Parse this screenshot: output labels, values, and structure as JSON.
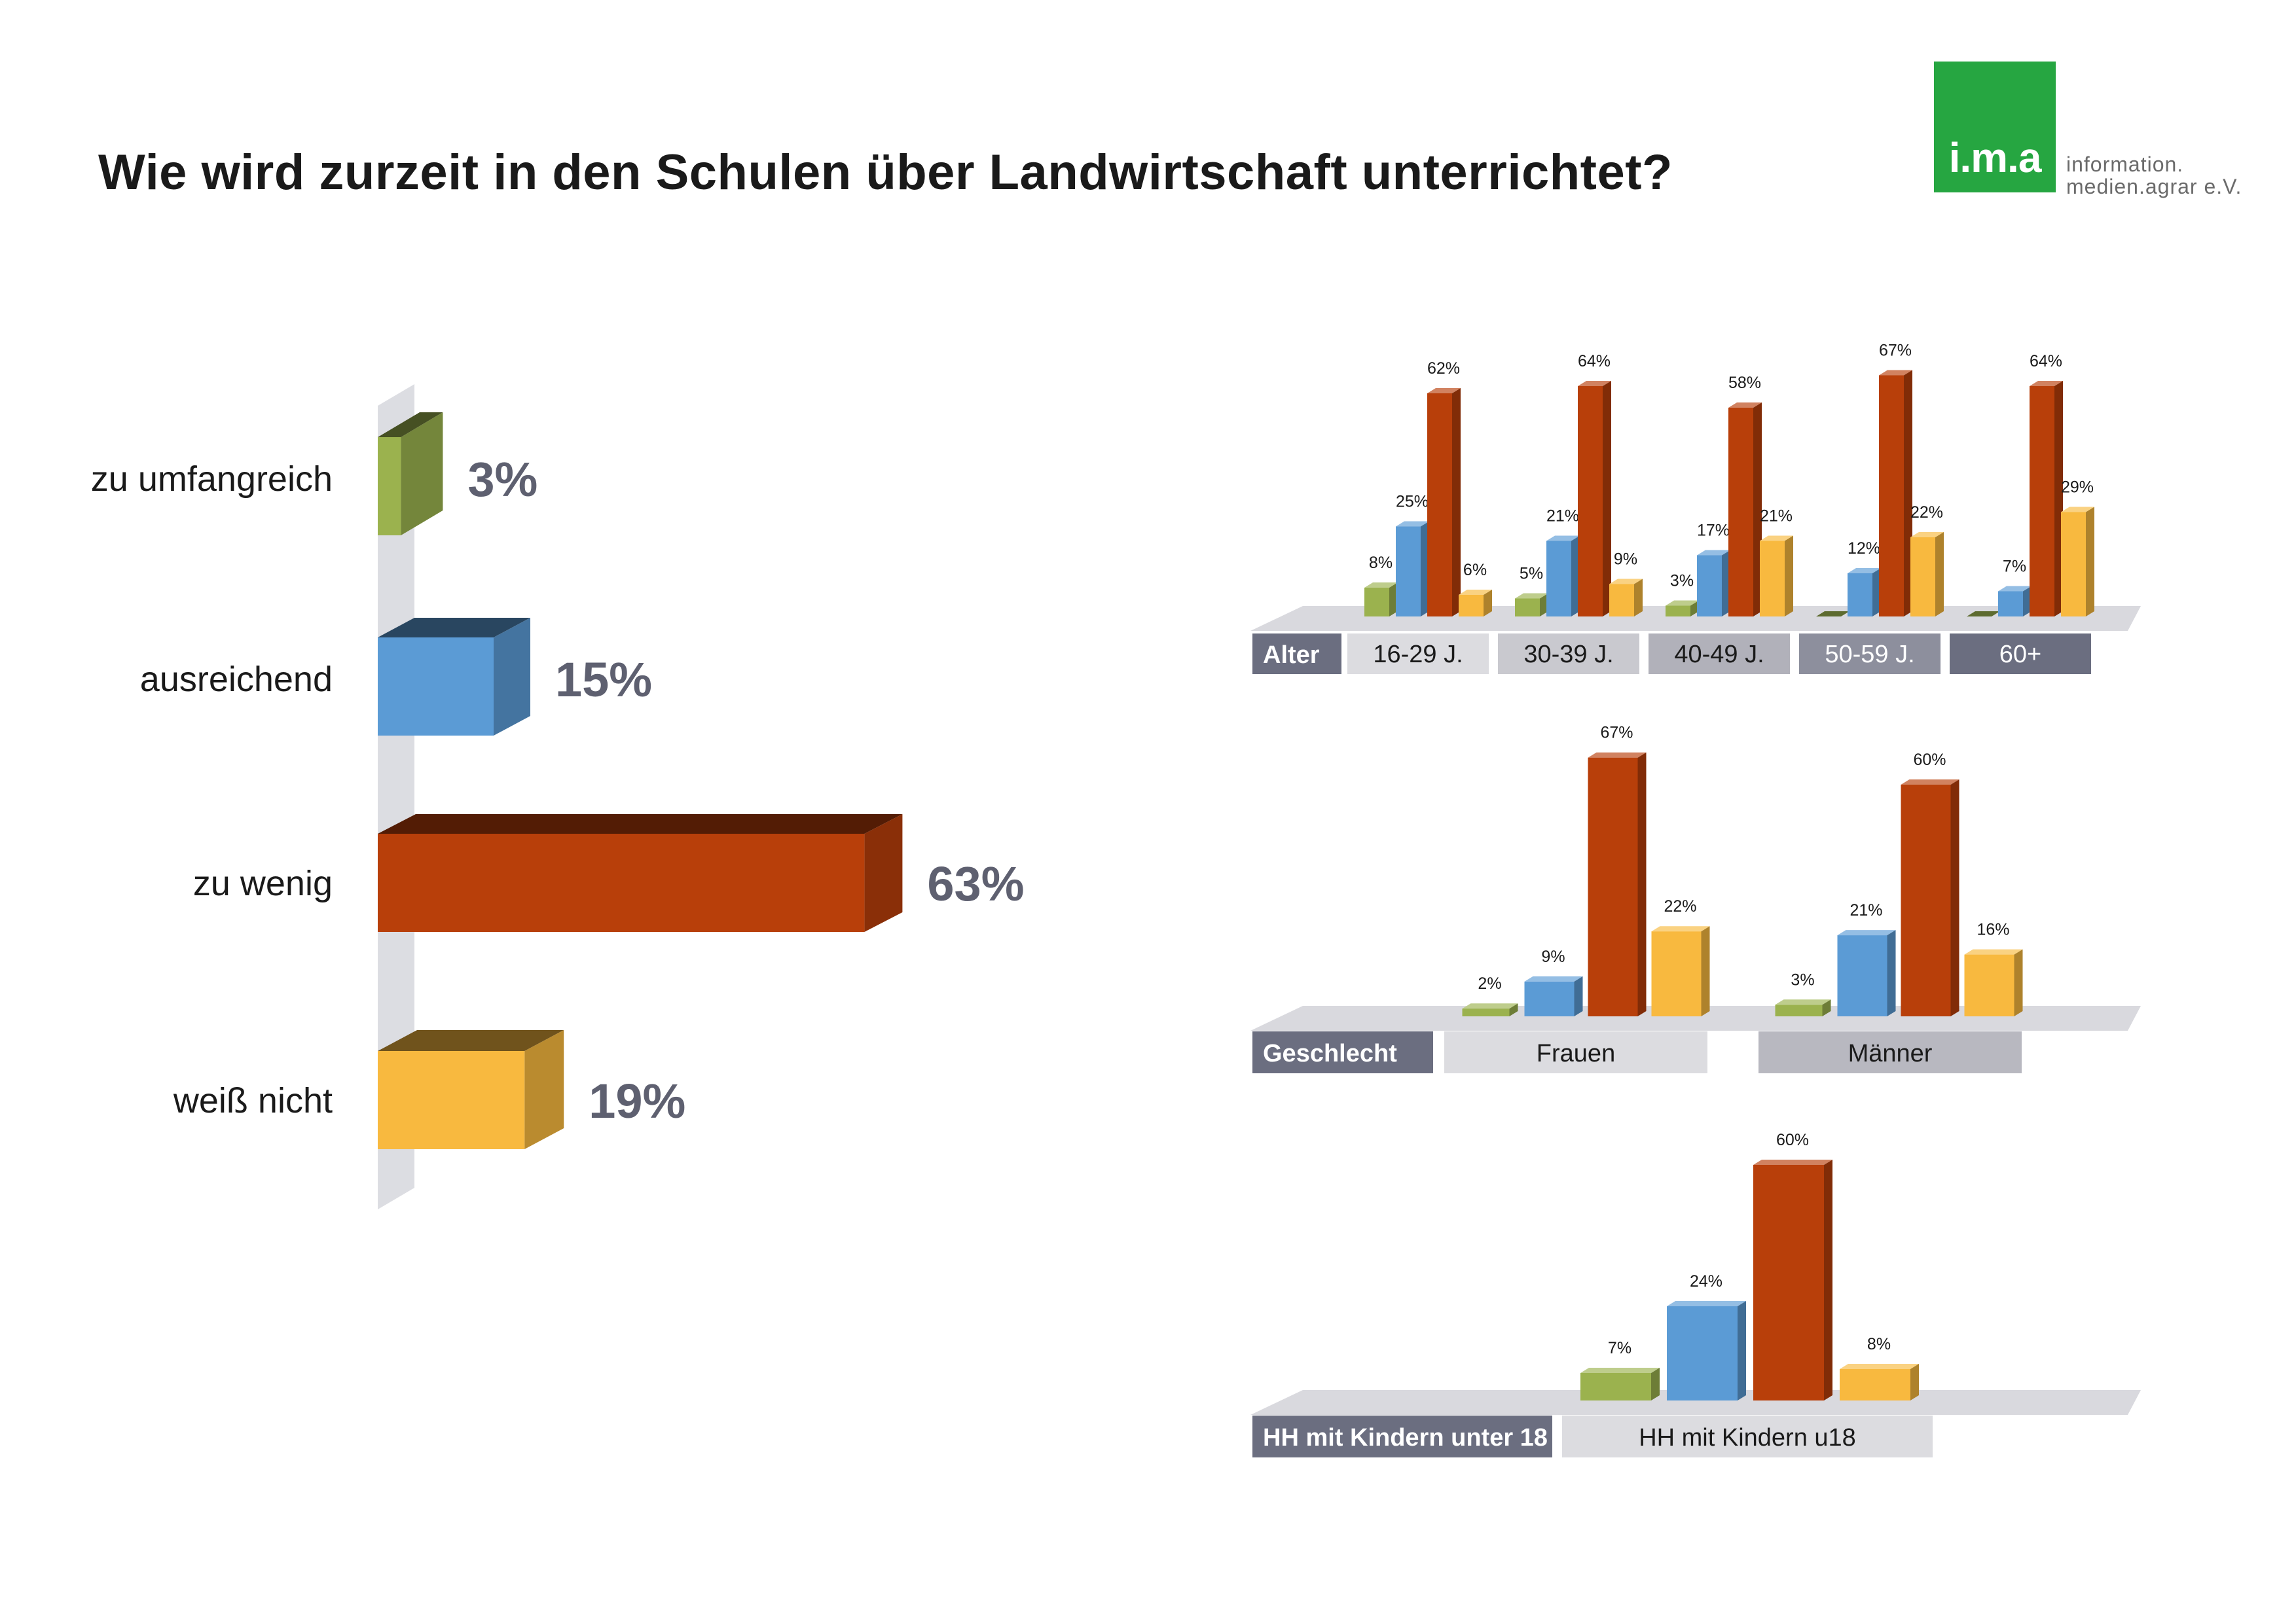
{
  "title": "Wie wird zurzeit in den Schulen über Landwirtschaft unterrichtet?",
  "logo": {
    "mark": "i.m.a",
    "line1": "information.",
    "line2": "medien.agrar e.V."
  },
  "colors": {
    "green": "#9bb24e",
    "blue": "#5b9bd5",
    "red": "#b83f0a",
    "yellow": "#f8b93f",
    "tag_dark": "#6b6e80",
    "tag_light": "#dcdce0"
  },
  "chart_data": [
    {
      "type": "bar",
      "orientation": "horizontal",
      "categories": [
        "zu umfangreich",
        "ausreichend",
        "zu wenig",
        "weiß nicht"
      ],
      "values": [
        3,
        15,
        63,
        19
      ],
      "value_labels": [
        "3%",
        "15%",
        "63%",
        "19%"
      ],
      "colors": [
        "#9bb24e",
        "#5b9bd5",
        "#b83f0a",
        "#f8b93f"
      ]
    },
    {
      "type": "bar",
      "group_label": "Alter",
      "categories": [
        "16-29 J.",
        "30-39 J.",
        "40-49 J.",
        "50-59 J.",
        "60+"
      ],
      "series": [
        {
          "values": [
            8,
            5,
            3,
            0,
            0
          ],
          "labels": [
            "8%",
            "5%",
            "3%",
            "",
            ""
          ]
        },
        {
          "values": [
            25,
            21,
            17,
            12,
            7
          ],
          "labels": [
            "25%",
            "21%",
            "17%",
            "12%",
            "7%"
          ]
        },
        {
          "values": [
            62,
            64,
            58,
            67,
            64
          ],
          "labels": [
            "62%",
            "64%",
            "58%",
            "67%",
            "64%"
          ]
        },
        {
          "values": [
            6,
            9,
            21,
            22,
            29
          ],
          "labels": [
            "6%",
            "9%",
            "21%",
            "22%",
            "29%"
          ]
        }
      ]
    },
    {
      "type": "bar",
      "group_label": "Geschlecht",
      "categories": [
        "Frauen",
        "Männer"
      ],
      "series": [
        {
          "values": [
            2,
            3
          ],
          "labels": [
            "2%",
            "3%"
          ]
        },
        {
          "values": [
            9,
            21
          ],
          "labels": [
            "9%",
            "21%"
          ]
        },
        {
          "values": [
            67,
            60
          ],
          "labels": [
            "67%",
            "60%"
          ]
        },
        {
          "values": [
            22,
            16
          ],
          "labels": [
            "22%",
            "16%"
          ]
        }
      ]
    },
    {
      "type": "bar",
      "group_label": "HH mit Kindern unter 18",
      "categories": [
        "HH mit Kindern u18"
      ],
      "series": [
        {
          "values": [
            7
          ],
          "labels": [
            "7%"
          ]
        },
        {
          "values": [
            24
          ],
          "labels": [
            "24%"
          ]
        },
        {
          "values": [
            60
          ],
          "labels": [
            "60%"
          ]
        },
        {
          "values": [
            8
          ],
          "labels": [
            "8%"
          ]
        }
      ]
    }
  ]
}
